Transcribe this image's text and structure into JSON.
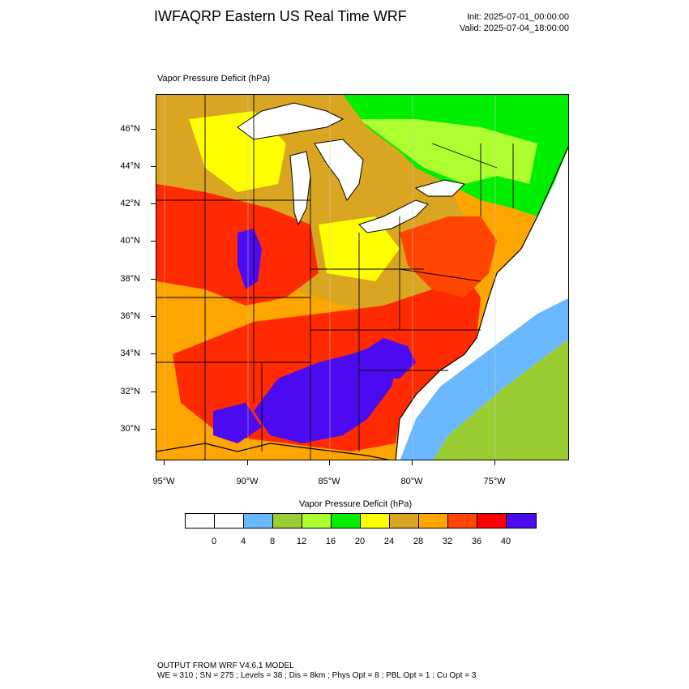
{
  "header": {
    "title": "IWFAQRP Eastern US Real Time WRF",
    "init": "Init: 2025-07-01_00:00:00",
    "valid": "Valid: 2025-07-04_18:00:00"
  },
  "plot": {
    "title": "Vapor Pressure Deficit   (hPa)"
  },
  "map": {
    "lat_labels": [
      "46°N",
      "44°N",
      "42°N",
      "40°N",
      "38°N",
      "36°N",
      "34°N",
      "32°N",
      "30°N"
    ],
    "lon_labels": [
      "95°W",
      "90°W",
      "85°W",
      "80°W",
      "75°W"
    ],
    "region": "Eastern United States",
    "colors": {
      "ocean": "#ffffff",
      "lake": "#ffffff",
      "border": "#000000"
    }
  },
  "colorbar": {
    "title": "Vapor Pressure Deficit  (hPa)",
    "labels": [
      "0",
      "4",
      "8",
      "12",
      "16",
      "20",
      "24",
      "28",
      "32",
      "36",
      "40"
    ],
    "colors": [
      "#ffffff",
      "#ffffff",
      "#6ab8ff",
      "#9acd32",
      "#adff2f",
      "#00ee00",
      "#ffff00",
      "#daa520",
      "#ffa500",
      "#ff4500",
      "#ff0000",
      "#4b0af0"
    ]
  },
  "footer": {
    "line1": "OUTPUT FROM WRF V4.6.1 MODEL",
    "line2": "WE = 310 ; SN = 275 ; Levels = 38 ; Dis = 8km ; Phys Opt = 8 ; PBL Opt = 1 ; Cu Opt = 3"
  }
}
